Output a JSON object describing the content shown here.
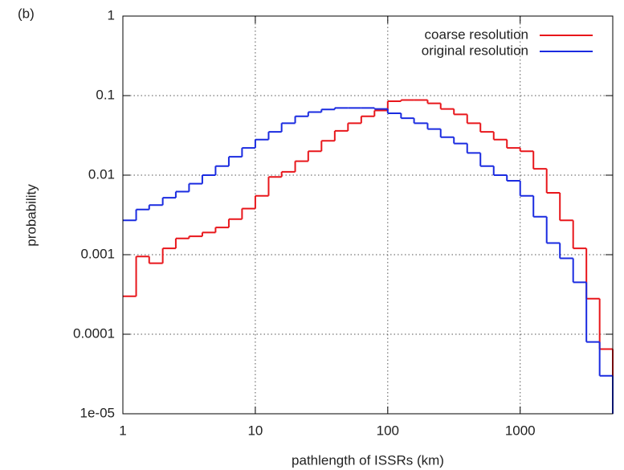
{
  "chart_data": {
    "type": "step-histogram",
    "annotation": "(b)",
    "xlabel": "pathlength of ISSRs (km)",
    "ylabel": "probability",
    "xscale": "log",
    "yscale": "log",
    "grid": true,
    "legend": "top-right",
    "xlim": [
      1,
      5000
    ],
    "ylim": [
      1e-05,
      1
    ],
    "xticks": [
      1,
      10,
      100,
      1000
    ],
    "yticks": [
      1,
      0.1,
      0.01,
      0.001,
      0.0001,
      {
        "value": 1e-05,
        "label": "1e-05"
      }
    ],
    "bins": [
      1,
      1.26,
      1.58,
      2,
      2.51,
      3.16,
      3.98,
      5.01,
      6.31,
      7.94,
      10,
      12.6,
      15.8,
      20,
      25.1,
      31.6,
      39.8,
      50.1,
      63.1,
      79.4,
      100,
      126,
      158,
      200,
      251,
      316,
      398,
      501,
      631,
      794,
      1000,
      1259,
      1585,
      1995,
      2512,
      3162,
      3981,
      5000
    ],
    "series": [
      {
        "name": "coarse resolution",
        "color": "#e8161b",
        "values": [
          0.0003,
          0.00095,
          0.00078,
          0.0012,
          0.0016,
          0.0017,
          0.0019,
          0.0022,
          0.0028,
          0.0038,
          0.0055,
          0.0095,
          0.011,
          0.015,
          0.02,
          0.027,
          0.036,
          0.045,
          0.055,
          0.065,
          0.085,
          0.088,
          0.088,
          0.08,
          0.068,
          0.058,
          0.045,
          0.035,
          0.028,
          0.022,
          0.02,
          0.012,
          0.006,
          0.0027,
          0.0012,
          0.00028,
          6.5e-05
        ]
      },
      {
        "name": "original resolution",
        "color": "#1a2be0",
        "values": [
          0.0027,
          0.0037,
          0.0042,
          0.0052,
          0.0062,
          0.0078,
          0.01,
          0.013,
          0.017,
          0.022,
          0.028,
          0.035,
          0.045,
          0.055,
          0.062,
          0.067,
          0.07,
          0.07,
          0.07,
          0.068,
          0.06,
          0.052,
          0.045,
          0.038,
          0.03,
          0.025,
          0.019,
          0.013,
          0.01,
          0.0085,
          0.0055,
          0.003,
          0.0014,
          0.0009,
          0.00045,
          8e-05,
          3e-05
        ]
      }
    ]
  }
}
